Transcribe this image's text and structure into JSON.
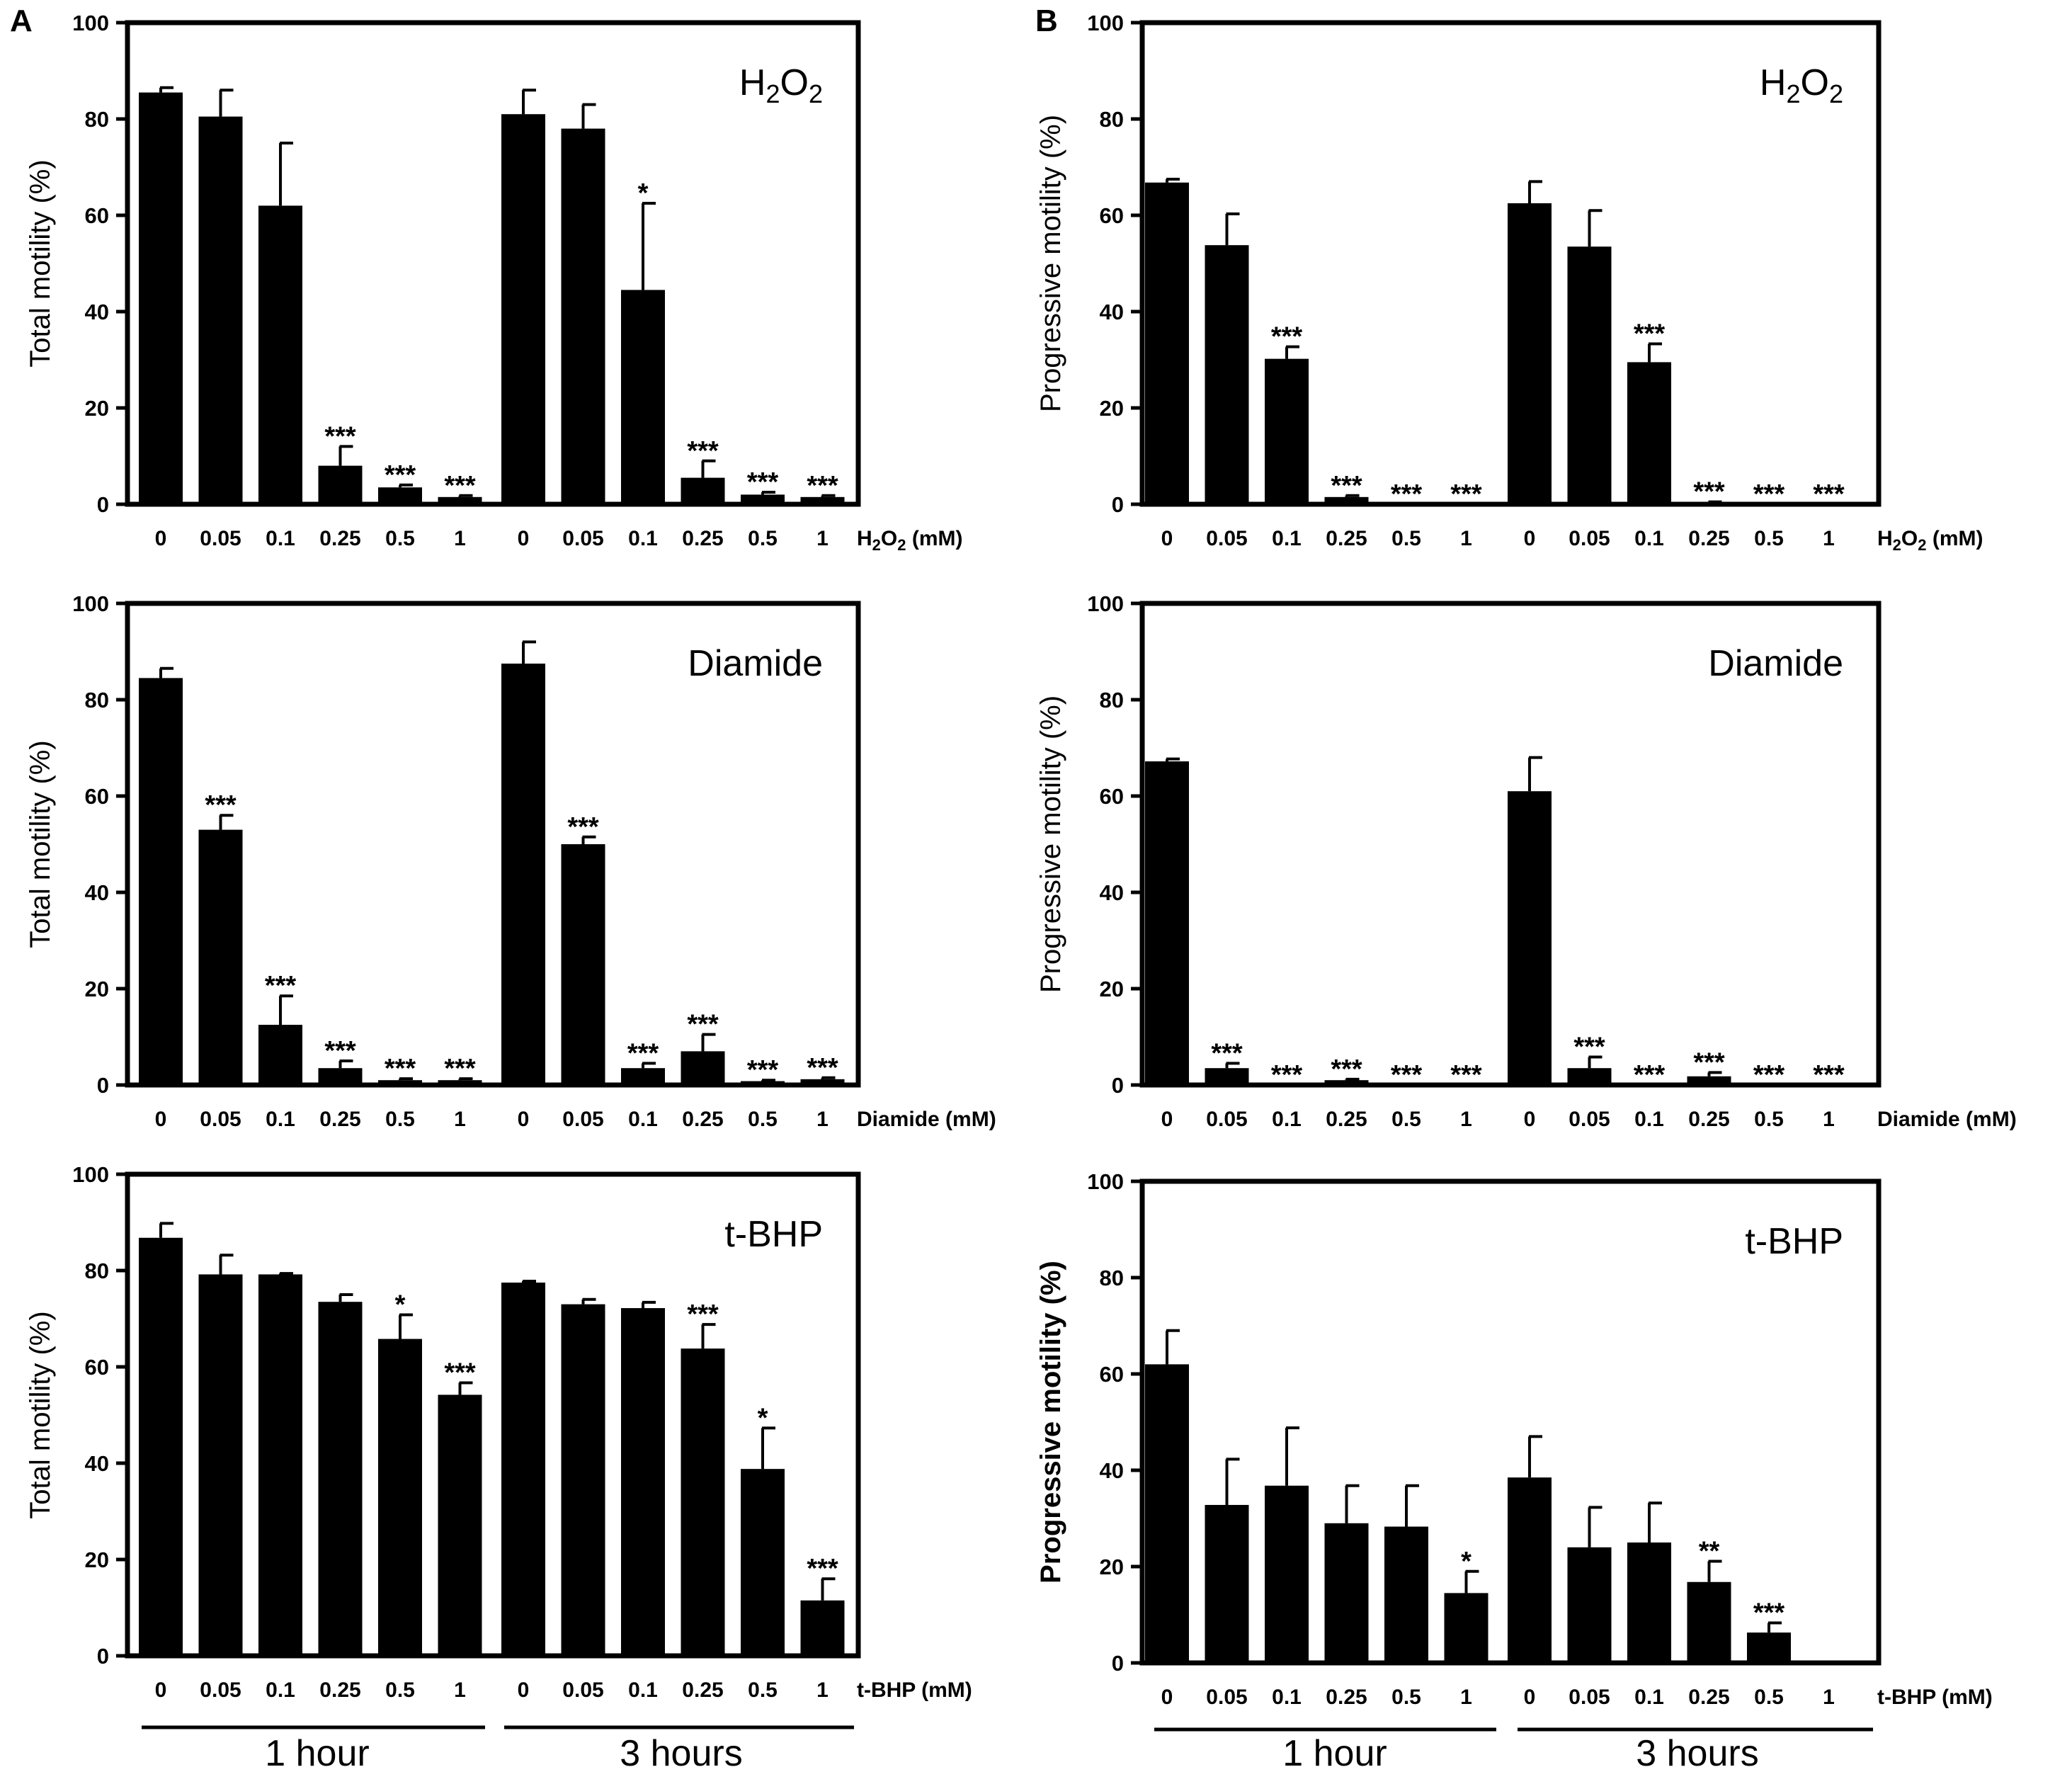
{
  "panel_labels": [
    "A",
    "B"
  ],
  "groups": [
    "1 hour",
    "3 hours"
  ],
  "chart_data": [
    {
      "type": "bar",
      "panel": "A",
      "title": "H2O2",
      "ylabel": "Total motility (%)",
      "xlabel": "H2O2 (mM)",
      "ylim": [
        0,
        100
      ],
      "yticks": [
        0,
        20,
        40,
        60,
        80,
        100
      ],
      "categories": [
        "0",
        "0.05",
        "0.1",
        "0.25",
        "0.5",
        "1",
        "0",
        "0.05",
        "0.1",
        "0.25",
        "0.5",
        "1"
      ],
      "values": [
        85.5,
        80.5,
        62,
        8,
        3.5,
        1.5,
        81,
        78,
        44.5,
        5.5,
        2,
        1.5
      ],
      "errors": [
        1,
        5.5,
        13,
        4,
        0.5,
        0.3,
        5,
        5,
        18,
        3.5,
        0.5,
        0.3
      ],
      "significance": [
        "",
        "",
        "",
        "***",
        "***",
        "***",
        "",
        "",
        "*",
        "***",
        "***",
        "***"
      ]
    },
    {
      "type": "bar",
      "panel": "B",
      "title": "H2O2",
      "ylabel": "Progressive motility (%)",
      "xlabel": "H2O2 (mM)",
      "ylim": [
        0,
        100
      ],
      "yticks": [
        0,
        20,
        40,
        60,
        80,
        100
      ],
      "categories": [
        "0",
        "0.05",
        "0.1",
        "0.25",
        "0.5",
        "1",
        "0",
        "0.05",
        "0.1",
        "0.25",
        "0.5",
        "1"
      ],
      "values": [
        66.8,
        53.8,
        30.2,
        1.5,
        0,
        0,
        62.5,
        53.5,
        29.5,
        0.3,
        0,
        0
      ],
      "errors": [
        0.7,
        6.5,
        2.5,
        0.3,
        0,
        0,
        4.5,
        7.5,
        3.8,
        0.2,
        0,
        0
      ],
      "significance": [
        "",
        "",
        "***",
        "***",
        "***",
        "***",
        "",
        "",
        "***",
        "***",
        "***",
        "***"
      ]
    },
    {
      "type": "bar",
      "panel": "A",
      "title": "Diamide",
      "ylabel": "Total motility (%)",
      "xlabel": "Diamide (mM)",
      "ylim": [
        0,
        100
      ],
      "yticks": [
        0,
        20,
        40,
        60,
        80,
        100
      ],
      "categories": [
        "0",
        "0.05",
        "0.1",
        "0.25",
        "0.5",
        "1",
        "0",
        "0.05",
        "0.1",
        "0.25",
        "0.5",
        "1"
      ],
      "values": [
        84.5,
        53,
        12.5,
        3.5,
        1,
        1,
        87.5,
        50,
        3.5,
        7,
        0.8,
        1.2
      ],
      "errors": [
        2,
        3,
        6,
        1.5,
        0.3,
        0.3,
        4.5,
        1.5,
        1,
        3.5,
        0.2,
        0.3
      ],
      "significance": [
        "",
        "***",
        "***",
        "***",
        "***",
        "***",
        "",
        "***",
        "***",
        "***",
        "***",
        "***"
      ]
    },
    {
      "type": "bar",
      "panel": "B",
      "title": "Diamide",
      "ylabel": "Progressive motility (%)",
      "xlabel": "Diamide (mM)",
      "ylim": [
        0,
        100
      ],
      "yticks": [
        0,
        20,
        40,
        60,
        80,
        100
      ],
      "categories": [
        "0",
        "0.05",
        "0.1",
        "0.25",
        "0.5",
        "1",
        "0",
        "0.05",
        "0.1",
        "0.25",
        "0.5",
        "1"
      ],
      "values": [
        67.2,
        3.5,
        0,
        1,
        0,
        0,
        61,
        3.5,
        0,
        1.8,
        0,
        0
      ],
      "errors": [
        0.5,
        1,
        0,
        0.2,
        0,
        0,
        7,
        2.3,
        0,
        0.8,
        0,
        0
      ],
      "significance": [
        "",
        "***",
        "***",
        "***",
        "***",
        "***",
        "",
        "***",
        "***",
        "***",
        "***",
        "***"
      ]
    },
    {
      "type": "bar",
      "panel": "A",
      "title": "t-BHP",
      "ylabel": "Total motility (%)",
      "xlabel": "t-BHP (mM)",
      "ylim": [
        0,
        100
      ],
      "yticks": [
        0,
        20,
        40,
        60,
        80,
        100
      ],
      "categories": [
        "0",
        "0.05",
        "0.1",
        "0.25",
        "0.5",
        "1",
        "0",
        "0.05",
        "0.1",
        "0.25",
        "0.5",
        "1"
      ],
      "values": [
        86.8,
        79.2,
        79.2,
        73.5,
        65.8,
        54.2,
        77.5,
        73,
        72.2,
        63.8,
        38.8,
        11.5
      ],
      "errors": [
        3,
        4,
        0.2,
        1.5,
        5,
        2.5,
        0.3,
        1,
        1.2,
        5,
        8.5,
        4.5
      ],
      "significance": [
        "",
        "",
        "",
        "",
        "*",
        "***",
        "",
        "",
        "",
        "***",
        "*",
        "***"
      ]
    },
    {
      "type": "bar",
      "panel": "B",
      "title": "t-BHP",
      "ylabel": "Progressive motility (%)",
      "xlabel": "t-BHP (mM)",
      "ylim": [
        0,
        100
      ],
      "yticks": [
        0,
        20,
        40,
        60,
        80,
        100
      ],
      "categories": [
        "0",
        "0.05",
        "0.1",
        "0.25",
        "0.5",
        "1",
        "0",
        "0.05",
        "0.1",
        "0.25",
        "0.5",
        "1"
      ],
      "values": [
        62,
        32.8,
        36.8,
        29,
        28.3,
        14.5,
        38.5,
        24,
        25,
        16.8,
        6.3,
        0
      ],
      "errors": [
        7,
        9.5,
        12,
        7.8,
        8.5,
        4.5,
        8.5,
        8.3,
        8.2,
        4.3,
        2,
        0
      ],
      "significance": [
        "",
        "",
        "",
        "",
        "",
        "*",
        "",
        "",
        "",
        "**",
        "***",
        ""
      ]
    }
  ]
}
